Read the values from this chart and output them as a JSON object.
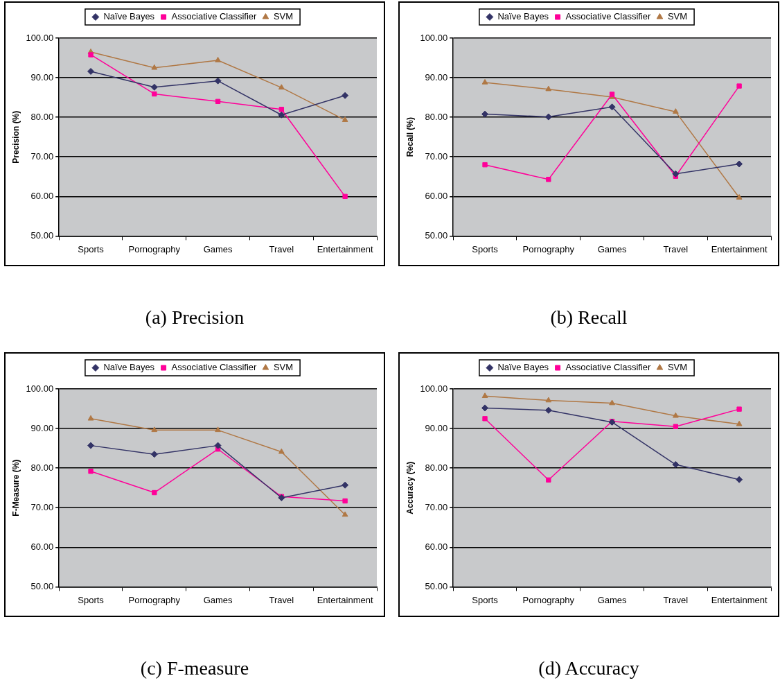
{
  "chart_data": [
    {
      "type": "line",
      "title": "(a) Precision",
      "ylabel": "Precision (%)",
      "categories": [
        "Sports",
        "Pornography",
        "Games",
        "Travel",
        "Entertainment"
      ],
      "ylim": [
        50,
        100
      ],
      "yticks": [
        {
          "value": 50,
          "label": "50.00"
        },
        {
          "value": 60,
          "label": "60.00"
        },
        {
          "value": 70,
          "label": "70.00"
        },
        {
          "value": 80,
          "label": "80.00"
        },
        {
          "value": 90,
          "label": "90.00"
        },
        {
          "value": 100,
          "label": "100.00"
        }
      ],
      "grid": "y",
      "legend": "top",
      "line_style": "solid",
      "series": [
        {
          "name": "Naïve Bayes",
          "color": "#333366",
          "marker": "diamond",
          "values": [
            91.6,
            87.6,
            89.2,
            80.6,
            85.5
          ]
        },
        {
          "name": "Associative Classifier",
          "color": "#ff0099",
          "marker": "square",
          "values": [
            95.8,
            85.9,
            84.0,
            82.0,
            60.0
          ]
        },
        {
          "name": "SVM",
          "color": "#b07845",
          "marker": "triangle",
          "values": [
            96.5,
            92.5,
            94.4,
            87.5,
            79.3
          ]
        }
      ]
    },
    {
      "type": "line",
      "title": "(b) Recall",
      "ylabel": "Recall (%)",
      "categories": [
        "Sports",
        "Pornography",
        "Games",
        "Travel",
        "Entertainment"
      ],
      "ylim": [
        50,
        100
      ],
      "yticks": [
        {
          "value": 50,
          "label": "50.00"
        },
        {
          "value": 60,
          "label": "60.00"
        },
        {
          "value": 70,
          "label": "70.00"
        },
        {
          "value": 80,
          "label": "80.00"
        },
        {
          "value": 90,
          "label": "90.00"
        },
        {
          "value": 100,
          "label": "100.00"
        }
      ],
      "grid": "y",
      "legend": "top",
      "line_style": "solid",
      "series": [
        {
          "name": "Naïve Bayes",
          "color": "#333366",
          "marker": "diamond",
          "values": [
            80.8,
            80.1,
            82.6,
            65.7,
            68.2
          ]
        },
        {
          "name": "Associative Classifier",
          "color": "#ff0099",
          "marker": "square",
          "values": [
            68.0,
            64.3,
            85.8,
            65.1,
            87.9
          ]
        },
        {
          "name": "SVM",
          "color": "#b07845",
          "marker": "triangle",
          "values": [
            88.8,
            87.1,
            85.1,
            81.4,
            59.7
          ]
        }
      ]
    },
    {
      "type": "line",
      "title": "(c) F-measure",
      "ylabel": "F-Measure (%)",
      "categories": [
        "Sports",
        "Pornography",
        "Games",
        "Travel",
        "Entertainment"
      ],
      "ylim": [
        50,
        100
      ],
      "yticks": [
        {
          "value": 50,
          "label": "50.00"
        },
        {
          "value": 60,
          "label": "60.00"
        },
        {
          "value": 70,
          "label": "70.00"
        },
        {
          "value": 80,
          "label": "80.00"
        },
        {
          "value": 90,
          "label": "90.00"
        },
        {
          "value": 100,
          "label": "100.00"
        }
      ],
      "grid": "y",
      "legend": "top",
      "line_style": "solid",
      "series": [
        {
          "name": "Naïve Bayes",
          "color": "#333366",
          "marker": "diamond",
          "values": [
            85.7,
            83.5,
            85.7,
            72.5,
            75.7
          ]
        },
        {
          "name": "Associative Classifier",
          "color": "#ff0099",
          "marker": "square",
          "values": [
            79.2,
            73.8,
            84.8,
            72.8,
            71.7
          ]
        },
        {
          "name": "SVM",
          "color": "#b07845",
          "marker": "triangle",
          "values": [
            92.5,
            89.6,
            89.6,
            84.1,
            68.2
          ]
        }
      ]
    },
    {
      "type": "line",
      "title": "(d) Accuracy",
      "ylabel": "Accuracy (%)",
      "categories": [
        "Sports",
        "Pornography",
        "Games",
        "Travel",
        "Entertainment"
      ],
      "ylim": [
        50,
        100
      ],
      "yticks": [
        {
          "value": 50,
          "label": "50.00"
        },
        {
          "value": 60,
          "label": "60.00"
        },
        {
          "value": 70,
          "label": "70.00"
        },
        {
          "value": 80,
          "label": "80.00"
        },
        {
          "value": 90,
          "label": "90.00"
        },
        {
          "value": 100,
          "label": "100.00"
        }
      ],
      "grid": "y",
      "legend": "top",
      "line_style": "solid",
      "series": [
        {
          "name": "Naïve Bayes",
          "color": "#333366",
          "marker": "diamond",
          "values": [
            95.2,
            94.6,
            91.6,
            80.9,
            77.1
          ]
        },
        {
          "name": "Associative Classifier",
          "color": "#ff0099",
          "marker": "square",
          "values": [
            92.5,
            77.0,
            91.8,
            90.5,
            94.9
          ]
        },
        {
          "name": "SVM",
          "color": "#b07845",
          "marker": "triangle",
          "values": [
            98.2,
            97.1,
            96.4,
            93.2,
            91.1
          ]
        }
      ]
    }
  ]
}
